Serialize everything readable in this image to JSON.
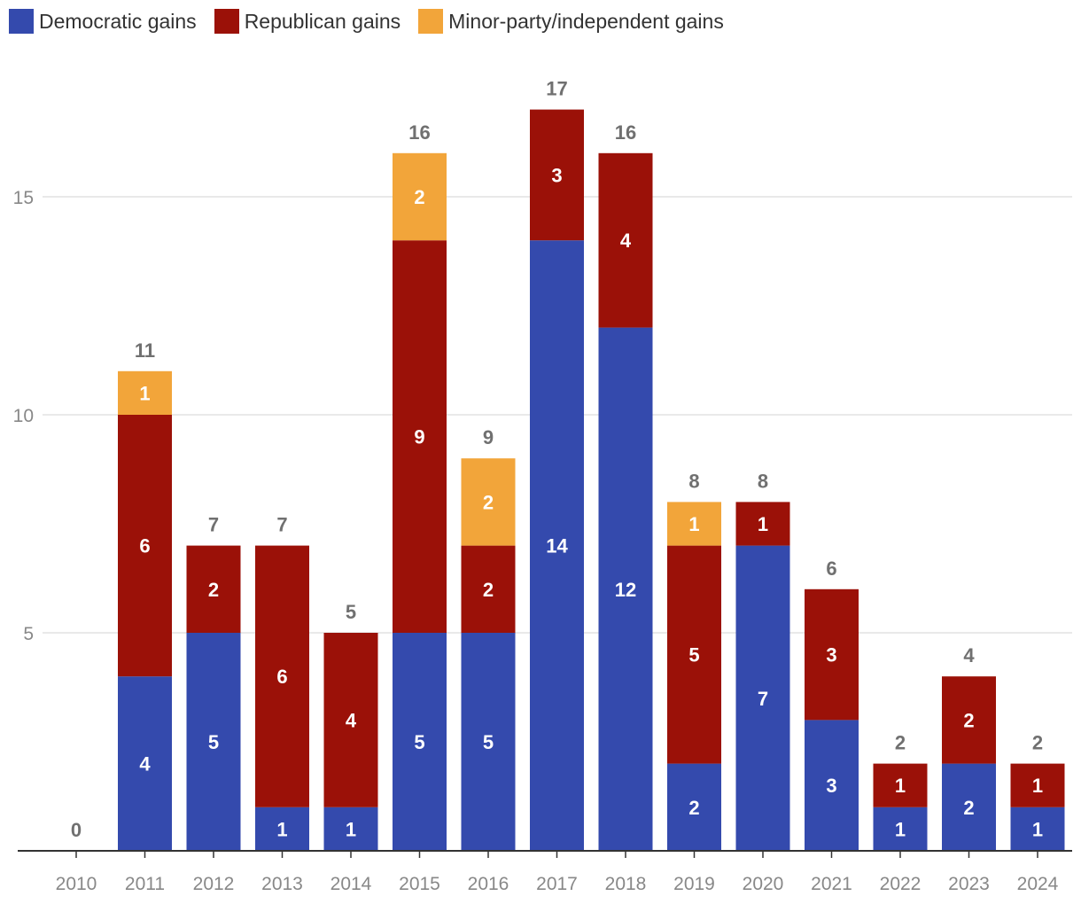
{
  "legend": [
    {
      "label": "Democratic gains",
      "color": "#344aad"
    },
    {
      "label": "Republican gains",
      "color": "#9b1108"
    },
    {
      "label": "Minor-party/independent gains",
      "color": "#f2a53a"
    }
  ],
  "chart_data": {
    "type": "bar",
    "stacked": true,
    "title": "",
    "xlabel": "",
    "ylabel": "",
    "ylim": [
      0,
      18
    ],
    "yticks": [
      5,
      10,
      15
    ],
    "grid": true,
    "legend_position": "top-left",
    "categories": [
      "2010",
      "2011",
      "2012",
      "2013",
      "2014",
      "2015",
      "2016",
      "2017",
      "2018",
      "2019",
      "2020",
      "2021",
      "2022",
      "2023",
      "2024"
    ],
    "series": [
      {
        "name": "Democratic gains",
        "color": "#344aad",
        "values": [
          0,
          4,
          5,
          1,
          1,
          5,
          5,
          14,
          12,
          2,
          7,
          3,
          1,
          2,
          1
        ]
      },
      {
        "name": "Republican gains",
        "color": "#9b1108",
        "values": [
          0,
          6,
          2,
          6,
          4,
          9,
          2,
          3,
          4,
          5,
          1,
          3,
          1,
          2,
          1
        ]
      },
      {
        "name": "Minor-party/independent gains",
        "color": "#f2a53a",
        "values": [
          0,
          1,
          0,
          0,
          0,
          2,
          2,
          0,
          0,
          1,
          0,
          0,
          0,
          0,
          0
        ]
      }
    ],
    "totals": [
      0,
      11,
      7,
      7,
      5,
      16,
      9,
      17,
      16,
      8,
      8,
      6,
      2,
      4,
      2
    ]
  }
}
